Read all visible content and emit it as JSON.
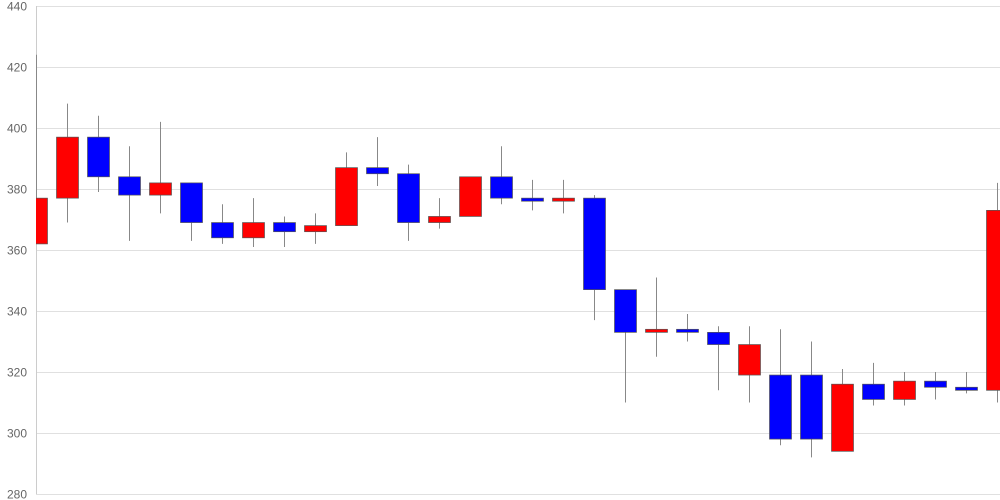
{
  "chart_data": {
    "type": "candlestick",
    "title": "",
    "xlabel": "",
    "ylabel": "",
    "ylim": [
      280,
      440
    ],
    "yticks": [
      "280",
      "300",
      "320",
      "340",
      "360",
      "380",
      "400",
      "420",
      "440"
    ],
    "grid": true,
    "colors": {
      "up": "#ff0000",
      "down": "#0000ff",
      "wick": "#888888",
      "grid": "#e0e0e0"
    },
    "candles": [
      {
        "open": 362,
        "high": 424,
        "low": 362,
        "close": 377
      },
      {
        "open": 377,
        "high": 408,
        "low": 369,
        "close": 397
      },
      {
        "open": 397,
        "high": 404,
        "low": 379,
        "close": 384
      },
      {
        "open": 384,
        "high": 394,
        "low": 363,
        "close": 378
      },
      {
        "open": 378,
        "high": 402,
        "low": 372,
        "close": 382
      },
      {
        "open": 382,
        "high": 382,
        "low": 363,
        "close": 369
      },
      {
        "open": 369,
        "high": 375,
        "low": 362,
        "close": 364
      },
      {
        "open": 364,
        "high": 377,
        "low": 361,
        "close": 369
      },
      {
        "open": 369,
        "high": 371,
        "low": 361,
        "close": 366
      },
      {
        "open": 366,
        "high": 372,
        "low": 362,
        "close": 368
      },
      {
        "open": 368,
        "high": 392,
        "low": 368,
        "close": 387
      },
      {
        "open": 387,
        "high": 397,
        "low": 381,
        "close": 385
      },
      {
        "open": 385,
        "high": 388,
        "low": 363,
        "close": 369
      },
      {
        "open": 369,
        "high": 377,
        "low": 367,
        "close": 371
      },
      {
        "open": 371,
        "high": 384,
        "low": 371,
        "close": 384
      },
      {
        "open": 384,
        "high": 394,
        "low": 375,
        "close": 377
      },
      {
        "open": 377,
        "high": 383,
        "low": 373,
        "close": 376
      },
      {
        "open": 376,
        "high": 383,
        "low": 372,
        "close": 377
      },
      {
        "open": 377,
        "high": 378,
        "low": 337,
        "close": 347
      },
      {
        "open": 347,
        "high": 347,
        "low": 310,
        "close": 333
      },
      {
        "open": 333,
        "high": 351,
        "low": 325,
        "close": 334
      },
      {
        "open": 334,
        "high": 339,
        "low": 330,
        "close": 333
      },
      {
        "open": 333,
        "high": 335,
        "low": 314,
        "close": 329
      },
      {
        "open": 319,
        "high": 335,
        "low": 310,
        "close": 329
      },
      {
        "open": 319,
        "high": 334,
        "low": 296,
        "close": 298
      },
      {
        "open": 319,
        "high": 330,
        "low": 292,
        "close": 298
      },
      {
        "open": 294,
        "high": 321,
        "low": 294,
        "close": 316
      },
      {
        "open": 316,
        "high": 323,
        "low": 309,
        "close": 311
      },
      {
        "open": 311,
        "high": 320,
        "low": 309,
        "close": 317
      },
      {
        "open": 317,
        "high": 320,
        "low": 311,
        "close": 315
      },
      {
        "open": 315,
        "high": 320,
        "low": 313,
        "close": 314
      },
      {
        "open": 314,
        "high": 382,
        "low": 310,
        "close": 373
      }
    ]
  }
}
